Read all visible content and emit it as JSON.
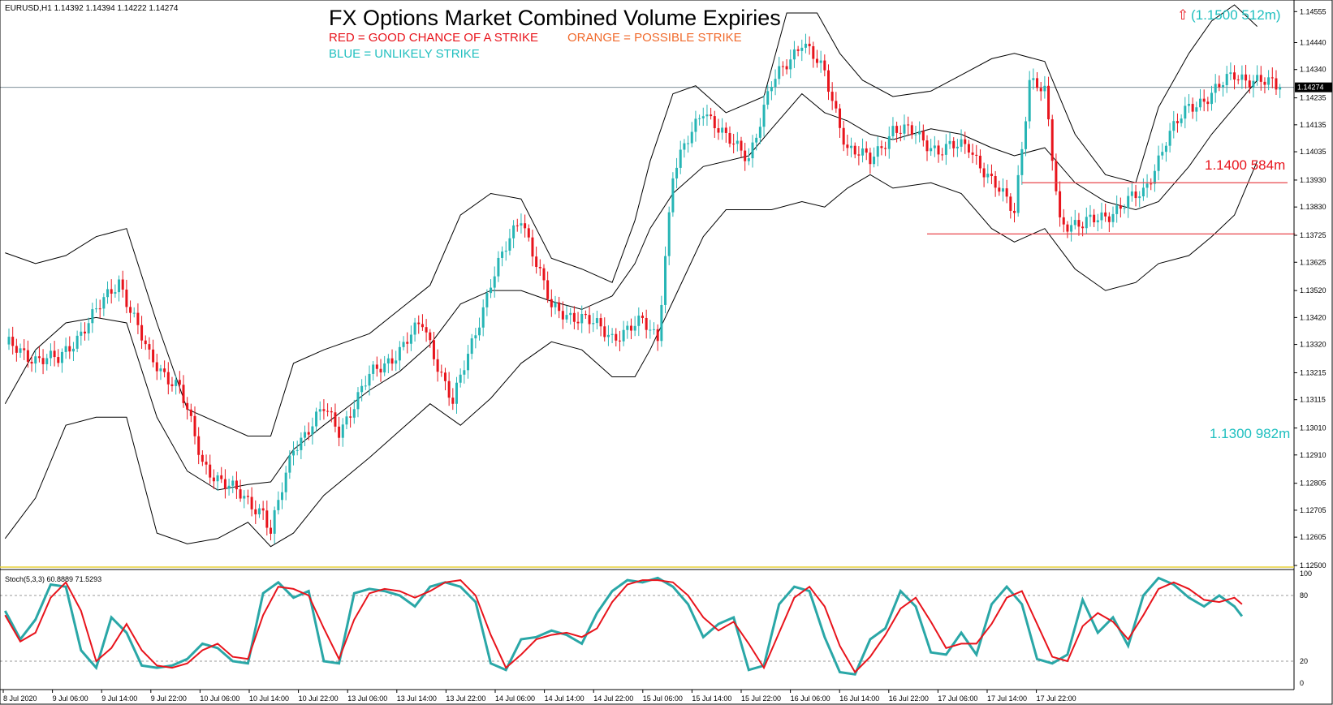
{
  "chart_data": {
    "type": "candlestick",
    "symbol_info": "EURUSD,H1  1.14392 1.14394 1.14222 1.14274",
    "title": "FX Options Market Combined Volume Expiries",
    "legend": {
      "red": "RED = GOOD CHANCE OF A STRIKE",
      "orange": "ORANGE = POSSIBLE STRIKE",
      "blue": "BLUE = UNLIKELY STRIKE"
    },
    "expiries": [
      {
        "level": 1.15,
        "label": "(1.1500 512m)",
        "arrow": "⇧",
        "color": "#1fbfbf"
      },
      {
        "level": 1.14,
        "label": "1.1400 584m",
        "color": "#e8141c"
      },
      {
        "level": 1.13,
        "label": "1.1300 982m",
        "color": "#1fbfbf"
      }
    ],
    "current_price": 1.14274,
    "current_price_label": "1.14274",
    "y_range": [
      1.125,
      1.1458
    ],
    "y_ticks": [
      "1.14555",
      "1.14440",
      "1.14340",
      "1.14235",
      "1.14135",
      "1.14035",
      "1.13930",
      "1.13830",
      "1.13725",
      "1.13625",
      "1.13520",
      "1.13420",
      "1.13320",
      "1.13215",
      "1.13115",
      "1.13010",
      "1.12910",
      "1.12805",
      "1.12705",
      "1.12605",
      "1.12500"
    ],
    "x_ticks": [
      "8 Jul 2020",
      "9 Jul 06:00",
      "9 Jul 14:00",
      "9 Jul 22:00",
      "10 Jul 06:00",
      "10 Jul 14:00",
      "10 Jul 22:00",
      "13 Jul 06:00",
      "13 Jul 14:00",
      "13 Jul 22:00",
      "14 Jul 06:00",
      "14 Jul 14:00",
      "14 Jul 22:00",
      "15 Jul 06:00",
      "15 Jul 14:00",
      "15 Jul 22:00",
      "16 Jul 06:00",
      "16 Jul 14:00",
      "16 Jul 22:00",
      "17 Jul 06:00",
      "17 Jul 14:00",
      "17 Jul 22:00"
    ],
    "close_path": [
      [
        0,
        1.1332
      ],
      [
        8,
        1.1327
      ],
      [
        14,
        1.1326
      ],
      [
        24,
        1.1344
      ],
      [
        30,
        1.1356
      ],
      [
        38,
        1.1327
      ],
      [
        46,
        1.1316
      ],
      [
        52,
        1.1288
      ],
      [
        58,
        1.128
      ],
      [
        62,
        1.1276
      ],
      [
        68,
        1.127
      ],
      [
        70,
        1.1262
      ],
      [
        76,
        1.1294
      ],
      [
        84,
        1.1308
      ],
      [
        88,
        1.13
      ],
      [
        96,
        1.132
      ],
      [
        104,
        1.133
      ],
      [
        110,
        1.134
      ],
      [
        118,
        1.131
      ],
      [
        128,
        1.1355
      ],
      [
        136,
        1.138
      ],
      [
        144,
        1.1345
      ],
      [
        152,
        1.1342
      ],
      [
        160,
        1.1335
      ],
      [
        168,
        1.134
      ],
      [
        172,
        1.1335
      ],
      [
        176,
        1.1395
      ],
      [
        184,
        1.142
      ],
      [
        190,
        1.1408
      ],
      [
        196,
        1.1402
      ],
      [
        202,
        1.1428
      ],
      [
        210,
        1.1445
      ],
      [
        216,
        1.1432
      ],
      [
        222,
        1.1405
      ],
      [
        228,
        1.14
      ],
      [
        234,
        1.1412
      ],
      [
        240,
        1.141
      ],
      [
        246,
        1.1404
      ],
      [
        254,
        1.1406
      ],
      [
        260,
        1.1392
      ],
      [
        266,
        1.1382
      ],
      [
        270,
        1.143
      ],
      [
        274,
        1.1425
      ],
      [
        278,
        1.1378
      ],
      [
        284,
        1.1376
      ],
      [
        290,
        1.138
      ],
      [
        296,
        1.1385
      ],
      [
        300,
        1.1388
      ],
      [
        306,
        1.1408
      ],
      [
        312,
        1.142
      ],
      [
        318,
        1.1425
      ],
      [
        324,
        1.1432
      ],
      [
        330,
        1.143
      ],
      [
        336,
        1.1427
      ]
    ],
    "bb_upper_path": [
      [
        0,
        1.1366
      ],
      [
        8,
        1.1362
      ],
      [
        16,
        1.1365
      ],
      [
        24,
        1.1372
      ],
      [
        32,
        1.1375
      ],
      [
        40,
        1.134
      ],
      [
        48,
        1.1308
      ],
      [
        56,
        1.1303
      ],
      [
        64,
        1.1298
      ],
      [
        70,
        1.1298
      ],
      [
        76,
        1.1325
      ],
      [
        84,
        1.133
      ],
      [
        96,
        1.1336
      ],
      [
        104,
        1.1345
      ],
      [
        112,
        1.1354
      ],
      [
        120,
        1.138
      ],
      [
        128,
        1.1388
      ],
      [
        136,
        1.1386
      ],
      [
        144,
        1.1364
      ],
      [
        152,
        1.136
      ],
      [
        160,
        1.1355
      ],
      [
        166,
        1.1378
      ],
      [
        170,
        1.14
      ],
      [
        176,
        1.1425
      ],
      [
        182,
        1.1428
      ],
      [
        190,
        1.1418
      ],
      [
        200,
        1.1424
      ],
      [
        206,
        1.1455
      ],
      [
        214,
        1.1455
      ],
      [
        220,
        1.144
      ],
      [
        226,
        1.143
      ],
      [
        234,
        1.1424
      ],
      [
        244,
        1.1426
      ],
      [
        252,
        1.1432
      ],
      [
        260,
        1.1438
      ],
      [
        266,
        1.144
      ],
      [
        274,
        1.1437
      ],
      [
        282,
        1.141
      ],
      [
        290,
        1.1395
      ],
      [
        298,
        1.1392
      ],
      [
        304,
        1.142
      ],
      [
        312,
        1.144
      ],
      [
        318,
        1.1452
      ],
      [
        324,
        1.1458
      ],
      [
        330,
        1.145
      ]
    ],
    "bb_middle_path": [
      [
        0,
        1.131
      ],
      [
        8,
        1.133
      ],
      [
        16,
        1.134
      ],
      [
        24,
        1.1342
      ],
      [
        32,
        1.134
      ],
      [
        40,
        1.1305
      ],
      [
        48,
        1.1285
      ],
      [
        56,
        1.1278
      ],
      [
        64,
        1.128
      ],
      [
        70,
        1.1281
      ],
      [
        76,
        1.1293
      ],
      [
        84,
        1.1302
      ],
      [
        96,
        1.1315
      ],
      [
        104,
        1.1322
      ],
      [
        112,
        1.1332
      ],
      [
        120,
        1.1347
      ],
      [
        128,
        1.1352
      ],
      [
        136,
        1.1352
      ],
      [
        144,
        1.1348
      ],
      [
        152,
        1.1345
      ],
      [
        160,
        1.135
      ],
      [
        166,
        1.1362
      ],
      [
        170,
        1.1375
      ],
      [
        176,
        1.1388
      ],
      [
        184,
        1.1398
      ],
      [
        190,
        1.14
      ],
      [
        196,
        1.1402
      ],
      [
        202,
        1.1412
      ],
      [
        210,
        1.1425
      ],
      [
        216,
        1.1418
      ],
      [
        222,
        1.1415
      ],
      [
        228,
        1.141
      ],
      [
        234,
        1.1408
      ],
      [
        244,
        1.1412
      ],
      [
        252,
        1.141
      ],
      [
        260,
        1.1405
      ],
      [
        266,
        1.1402
      ],
      [
        274,
        1.1405
      ],
      [
        282,
        1.1392
      ],
      [
        290,
        1.1385
      ],
      [
        298,
        1.1382
      ],
      [
        304,
        1.1385
      ],
      [
        312,
        1.1398
      ],
      [
        318,
        1.141
      ],
      [
        324,
        1.142
      ],
      [
        330,
        1.143
      ]
    ],
    "bb_lower_path": [
      [
        0,
        1.126
      ],
      [
        8,
        1.1275
      ],
      [
        16,
        1.1302
      ],
      [
        24,
        1.1305
      ],
      [
        32,
        1.1305
      ],
      [
        40,
        1.1262
      ],
      [
        48,
        1.1258
      ],
      [
        56,
        1.126
      ],
      [
        64,
        1.1266
      ],
      [
        70,
        1.1257
      ],
      [
        76,
        1.1262
      ],
      [
        84,
        1.1276
      ],
      [
        96,
        1.129
      ],
      [
        104,
        1.13
      ],
      [
        112,
        1.131
      ],
      [
        120,
        1.1302
      ],
      [
        128,
        1.1312
      ],
      [
        136,
        1.1325
      ],
      [
        144,
        1.1333
      ],
      [
        152,
        1.133
      ],
      [
        160,
        1.132
      ],
      [
        166,
        1.132
      ],
      [
        170,
        1.133
      ],
      [
        176,
        1.1348
      ],
      [
        184,
        1.1372
      ],
      [
        190,
        1.1382
      ],
      [
        196,
        1.1382
      ],
      [
        202,
        1.1382
      ],
      [
        210,
        1.1385
      ],
      [
        216,
        1.1383
      ],
      [
        222,
        1.139
      ],
      [
        228,
        1.1395
      ],
      [
        234,
        1.139
      ],
      [
        244,
        1.1392
      ],
      [
        252,
        1.1388
      ],
      [
        260,
        1.1375
      ],
      [
        266,
        1.137
      ],
      [
        274,
        1.1375
      ],
      [
        282,
        1.136
      ],
      [
        290,
        1.1352
      ],
      [
        298,
        1.1355
      ],
      [
        304,
        1.1362
      ],
      [
        312,
        1.1365
      ],
      [
        318,
        1.1372
      ],
      [
        324,
        1.138
      ],
      [
        330,
        1.14
      ]
    ],
    "strike_lines": [
      {
        "x1": 268,
        "x2": 338,
        "y": 1.1392,
        "color": "#e8474c"
      },
      {
        "x1": 243,
        "x2": 340,
        "y": 1.1373,
        "color": "#e8474c"
      }
    ],
    "oscillator": {
      "label": "Stoch(5,3,3) 60.8889 71.5293",
      "range": [
        0,
        100
      ],
      "ticks": [
        "100",
        "80",
        "20",
        "0"
      ],
      "levels": [
        80,
        20
      ],
      "main_path": [
        [
          0,
          66
        ],
        [
          4,
          40
        ],
        [
          8,
          58
        ],
        [
          12,
          90
        ],
        [
          16,
          88
        ],
        [
          20,
          30
        ],
        [
          24,
          14
        ],
        [
          28,
          60
        ],
        [
          32,
          46
        ],
        [
          36,
          16
        ],
        [
          40,
          14
        ],
        [
          44,
          16
        ],
        [
          48,
          22
        ],
        [
          52,
          36
        ],
        [
          56,
          32
        ],
        [
          60,
          20
        ],
        [
          64,
          18
        ],
        [
          68,
          82
        ],
        [
          72,
          92
        ],
        [
          76,
          78
        ],
        [
          80,
          84
        ],
        [
          84,
          20
        ],
        [
          88,
          18
        ],
        [
          92,
          82
        ],
        [
          96,
          86
        ],
        [
          100,
          84
        ],
        [
          104,
          80
        ],
        [
          108,
          70
        ],
        [
          112,
          88
        ],
        [
          116,
          92
        ],
        [
          120,
          88
        ],
        [
          124,
          74
        ],
        [
          128,
          18
        ],
        [
          132,
          12
        ],
        [
          136,
          40
        ],
        [
          140,
          42
        ],
        [
          144,
          48
        ],
        [
          148,
          44
        ],
        [
          152,
          36
        ],
        [
          156,
          64
        ],
        [
          160,
          84
        ],
        [
          164,
          94
        ],
        [
          168,
          92
        ],
        [
          172,
          96
        ],
        [
          176,
          88
        ],
        [
          180,
          72
        ],
        [
          184,
          42
        ],
        [
          188,
          54
        ],
        [
          192,
          60
        ],
        [
          196,
          12
        ],
        [
          200,
          16
        ],
        [
          204,
          72
        ],
        [
          208,
          88
        ],
        [
          212,
          84
        ],
        [
          216,
          42
        ],
        [
          220,
          10
        ],
        [
          224,
          8
        ],
        [
          228,
          40
        ],
        [
          232,
          50
        ],
        [
          236,
          84
        ],
        [
          240,
          70
        ],
        [
          244,
          28
        ],
        [
          248,
          26
        ],
        [
          252,
          46
        ],
        [
          256,
          26
        ],
        [
          260,
          72
        ],
        [
          264,
          88
        ],
        [
          268,
          72
        ],
        [
          272,
          22
        ],
        [
          276,
          18
        ],
        [
          280,
          26
        ],
        [
          284,
          76
        ],
        [
          288,
          46
        ],
        [
          292,
          60
        ],
        [
          296,
          34
        ],
        [
          300,
          80
        ],
        [
          304,
          96
        ],
        [
          308,
          90
        ],
        [
          312,
          78
        ],
        [
          316,
          70
        ],
        [
          320,
          80
        ],
        [
          324,
          70
        ],
        [
          326,
          61
        ]
      ],
      "signal_path": [
        [
          0,
          62
        ],
        [
          4,
          38
        ],
        [
          8,
          46
        ],
        [
          12,
          78
        ],
        [
          16,
          92
        ],
        [
          20,
          66
        ],
        [
          24,
          20
        ],
        [
          28,
          32
        ],
        [
          32,
          54
        ],
        [
          36,
          30
        ],
        [
          40,
          16
        ],
        [
          44,
          14
        ],
        [
          48,
          18
        ],
        [
          52,
          30
        ],
        [
          56,
          36
        ],
        [
          60,
          24
        ],
        [
          64,
          22
        ],
        [
          68,
          62
        ],
        [
          72,
          88
        ],
        [
          76,
          86
        ],
        [
          80,
          80
        ],
        [
          84,
          50
        ],
        [
          88,
          22
        ],
        [
          92,
          58
        ],
        [
          96,
          82
        ],
        [
          100,
          86
        ],
        [
          104,
          84
        ],
        [
          108,
          78
        ],
        [
          112,
          84
        ],
        [
          116,
          92
        ],
        [
          120,
          94
        ],
        [
          124,
          80
        ],
        [
          128,
          44
        ],
        [
          132,
          14
        ],
        [
          136,
          26
        ],
        [
          140,
          40
        ],
        [
          144,
          44
        ],
        [
          148,
          46
        ],
        [
          152,
          42
        ],
        [
          156,
          50
        ],
        [
          160,
          74
        ],
        [
          164,
          90
        ],
        [
          168,
          94
        ],
        [
          172,
          94
        ],
        [
          176,
          92
        ],
        [
          180,
          80
        ],
        [
          184,
          60
        ],
        [
          188,
          48
        ],
        [
          192,
          56
        ],
        [
          196,
          36
        ],
        [
          200,
          14
        ],
        [
          204,
          46
        ],
        [
          208,
          78
        ],
        [
          212,
          88
        ],
        [
          216,
          70
        ],
        [
          220,
          34
        ],
        [
          224,
          10
        ],
        [
          228,
          24
        ],
        [
          232,
          44
        ],
        [
          236,
          68
        ],
        [
          240,
          78
        ],
        [
          244,
          56
        ],
        [
          248,
          32
        ],
        [
          252,
          36
        ],
        [
          256,
          36
        ],
        [
          260,
          54
        ],
        [
          264,
          78
        ],
        [
          268,
          84
        ],
        [
          272,
          54
        ],
        [
          276,
          24
        ],
        [
          280,
          20
        ],
        [
          284,
          52
        ],
        [
          288,
          64
        ],
        [
          292,
          56
        ],
        [
          296,
          40
        ],
        [
          300,
          62
        ],
        [
          304,
          86
        ],
        [
          308,
          92
        ],
        [
          312,
          86
        ],
        [
          316,
          76
        ],
        [
          320,
          74
        ],
        [
          324,
          78
        ],
        [
          326,
          72
        ]
      ]
    }
  },
  "colors": {
    "bull": "#26b5b5",
    "bear": "#e8141c",
    "band": "#000000",
    "stoch_main": "#2aa7a7",
    "stoch_signal": "#e8141c",
    "separator": "#e8d23a",
    "price_line": "#7f8f9a"
  }
}
